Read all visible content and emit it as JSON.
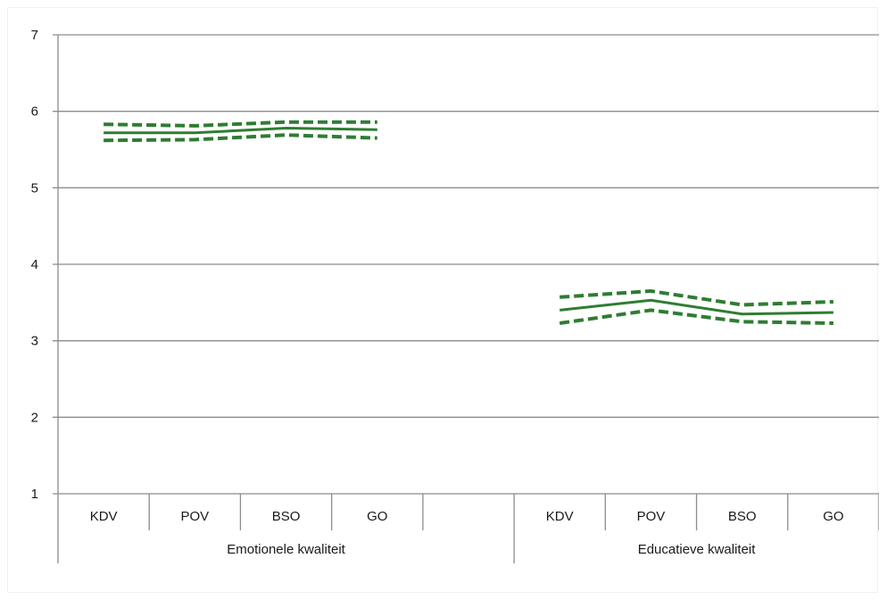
{
  "chart_data": {
    "type": "line",
    "title": "",
    "xlabel": "",
    "ylabel": "",
    "ylim": [
      1,
      7
    ],
    "yticks": [
      1,
      2,
      3,
      4,
      5,
      6,
      7
    ],
    "grid": "horizontal",
    "line_color": "#2e7d32",
    "groups": [
      {
        "label": "Emotionele kwaliteit",
        "categories": [
          "KDV",
          "POV",
          "BSO",
          "GO",
          ""
        ],
        "mean": [
          5.72,
          5.72,
          5.78,
          5.76,
          null
        ],
        "upper": [
          5.83,
          5.81,
          5.86,
          5.86,
          null
        ],
        "lower": [
          5.62,
          5.63,
          5.69,
          5.65,
          null
        ]
      },
      {
        "label": "Educatieve kwaliteit",
        "categories": [
          "KDV",
          "POV",
          "BSO",
          "GO"
        ],
        "mean": [
          3.4,
          3.53,
          3.35,
          3.37
        ],
        "upper": [
          3.57,
          3.65,
          3.47,
          3.51
        ],
        "lower": [
          3.23,
          3.4,
          3.25,
          3.23
        ]
      }
    ]
  }
}
